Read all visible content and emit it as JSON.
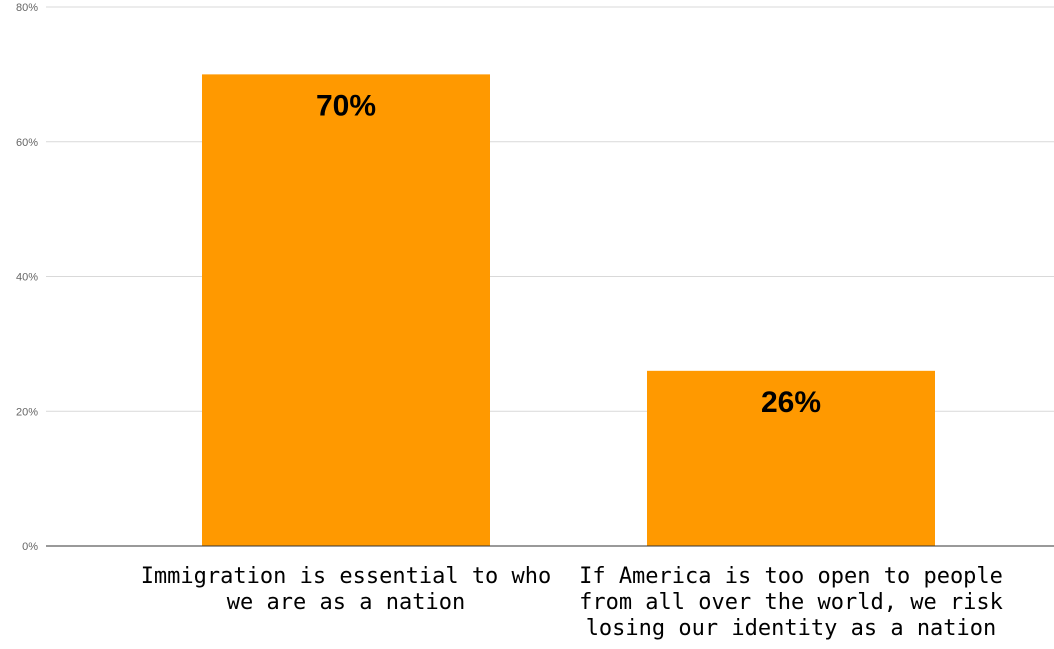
{
  "chart_data": {
    "type": "bar",
    "categories": [
      [
        "Immigration is essential to who",
        "we are as a nation"
      ],
      [
        "If America is too open to people",
        "from all over the world, we risk",
        "losing our identity as a nation"
      ]
    ],
    "values": [
      70,
      26
    ],
    "data_labels": [
      "70%",
      "26%"
    ],
    "yticks": [
      "0%",
      "20%",
      "40%",
      "60%",
      "80%"
    ],
    "ylim": [
      0,
      80
    ],
    "grid": true,
    "legend": "none"
  },
  "colors": {
    "bar": "#ff9900"
  }
}
